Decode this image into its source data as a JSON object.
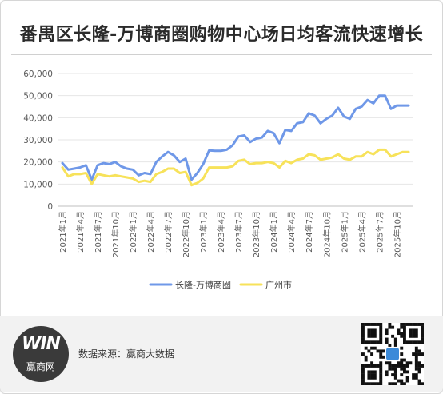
{
  "title": "番禺区长隆-万博商圈购物中心场日均客流快速增长",
  "source": "数据来源：赢商大数据",
  "logo": {
    "mark": "WIN",
    "text": "赢商网"
  },
  "colors": {
    "series1": "#6f98e8",
    "series2": "#f7e25a",
    "axis": "#595959",
    "grid": "#e6e6e6"
  },
  "chart_data": {
    "type": "line",
    "title": "番禺区长隆-万博商圈购物中心场日均客流快速增长",
    "xlabel": "",
    "ylabel": "",
    "ylim": [
      0,
      60000
    ],
    "yticks": [
      "0",
      "10,000",
      "20,000",
      "30,000",
      "40,000",
      "50,000",
      "60,000"
    ],
    "grid": true,
    "legend": "bottom",
    "x": [
      "2021年1月",
      "2021年2月",
      "2021年3月",
      "2021年4月",
      "2021年5月",
      "2021年6月",
      "2021年7月",
      "2021年8月",
      "2021年9月",
      "2021年10月",
      "2021年11月",
      "2021年12月",
      "2022年1月",
      "2022年2月",
      "2022年3月",
      "2022年4月",
      "2022年5月",
      "2022年6月",
      "2022年7月",
      "2022年8月",
      "2022年9月",
      "2022年10月",
      "2022年11月",
      "2022年12月",
      "2023年1月",
      "2023年2月",
      "2023年3月",
      "2023年4月",
      "2023年5月",
      "2023年6月",
      "2023年7月",
      "2023年8月",
      "2023年9月",
      "2023年10月",
      "2023年11月",
      "2023年12月",
      "2024年1月",
      "2024年2月",
      "2024年3月",
      "2024年4月",
      "2024年5月",
      "2024年6月",
      "2024年7月",
      "2024年8月",
      "2024年9月",
      "2024年10月",
      "2024年11月",
      "2024年12月",
      "2025年1月",
      "2025年2月",
      "2025年3月",
      "2025年4月",
      "2025年5月",
      "2025年6月",
      "2025年7月",
      "2025年8月",
      "2025年9月",
      "2025年10月",
      "2025年11月",
      "2025年12月"
    ],
    "xtick_labels": [
      "2021年1月",
      "2021年4月",
      "2021年7月",
      "2021年10月",
      "2022年1月",
      "2022年4月",
      "2022年7月",
      "2022年10月",
      "2023年1月",
      "2023年4月",
      "2023年7月",
      "2023年10月",
      "2024年1月",
      "2024年4月",
      "2024年7月",
      "2024年10月",
      "2025年1月",
      "2025年4月",
      "2025年7月",
      "2025年10月"
    ],
    "series": [
      {
        "name": "长隆-万博商圈",
        "values": [
          19500,
          16500,
          17000,
          17500,
          18500,
          12000,
          18500,
          19500,
          19000,
          20000,
          18000,
          17000,
          16500,
          14000,
          15000,
          14500,
          20000,
          22500,
          24500,
          23000,
          20000,
          21500,
          12000,
          15000,
          19000,
          25200,
          25000,
          25000,
          25500,
          27500,
          31500,
          32000,
          29000,
          30500,
          31000,
          34000,
          33000,
          28500,
          34500,
          34000,
          37500,
          38000,
          42000,
          41000,
          37500,
          39500,
          41000,
          44500,
          40500,
          39500,
          44000,
          45000,
          48000,
          46500,
          50000,
          50000,
          44000,
          45500,
          45500,
          45500
        ]
      },
      {
        "name": "广州市",
        "values": [
          17500,
          13500,
          14500,
          14500,
          15000,
          10000,
          14500,
          14000,
          13500,
          14000,
          13500,
          13000,
          12500,
          11000,
          11500,
          11000,
          14500,
          15500,
          17000,
          17000,
          15000,
          15500,
          9500,
          10500,
          12500,
          17500,
          17500,
          17500,
          17500,
          18000,
          20500,
          21000,
          19000,
          19500,
          19500,
          20000,
          19500,
          17500,
          20500,
          19500,
          21000,
          21500,
          23500,
          23000,
          21000,
          21500,
          22000,
          23500,
          21500,
          21000,
          22500,
          22500,
          24500,
          23500,
          25500,
          25500,
          22500,
          23500,
          24500,
          24500
        ]
      }
    ]
  }
}
